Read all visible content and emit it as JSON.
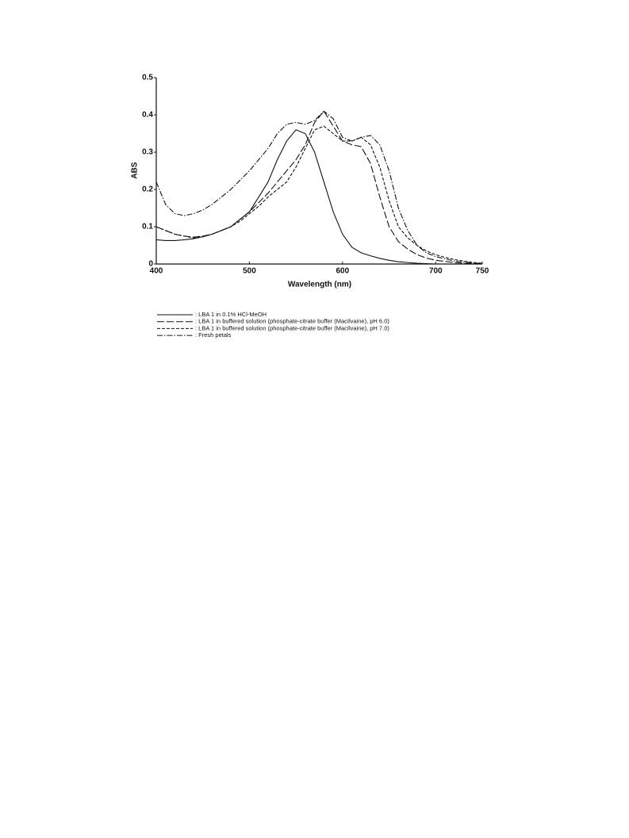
{
  "chart_data": {
    "type": "line",
    "xlabel": "Wavelength (nm)",
    "ylabel": "ABS",
    "xlim": [
      400,
      750
    ],
    "xticks": [
      400,
      500,
      600,
      700,
      750
    ],
    "ylim": [
      0,
      0.5
    ],
    "yticks": [
      0,
      0.1,
      0.2,
      0.3,
      0.4,
      0.5
    ],
    "x": [
      400,
      410,
      420,
      430,
      440,
      450,
      460,
      470,
      480,
      490,
      500,
      510,
      520,
      530,
      540,
      550,
      560,
      570,
      580,
      590,
      600,
      610,
      620,
      630,
      640,
      650,
      660,
      670,
      680,
      690,
      700,
      710,
      720,
      730,
      740,
      750
    ],
    "series": [
      {
        "name": ": LBA 1 in 0.1% HCl-MeOH",
        "color": "#111111",
        "dash": "solid",
        "values": [
          0.065,
          0.063,
          0.063,
          0.065,
          0.068,
          0.073,
          0.08,
          0.09,
          0.1,
          0.12,
          0.14,
          0.18,
          0.22,
          0.28,
          0.33,
          0.36,
          0.35,
          0.3,
          0.22,
          0.14,
          0.08,
          0.045,
          0.03,
          0.022,
          0.015,
          0.01,
          0.006,
          0.004,
          0.002,
          0.001,
          0,
          0,
          0,
          0,
          0,
          0
        ]
      },
      {
        "name": ": LBA 1 in buffered solution (phosphate-citrate buffer (MacIlvaine), pH 6.0)",
        "color": "#111111",
        "dash": "long-dash",
        "values": [
          0.1,
          0.09,
          0.08,
          0.075,
          0.072,
          0.075,
          0.08,
          0.09,
          0.1,
          0.12,
          0.14,
          0.165,
          0.19,
          0.22,
          0.25,
          0.28,
          0.32,
          0.38,
          0.41,
          0.37,
          0.33,
          0.32,
          0.315,
          0.27,
          0.18,
          0.1,
          0.06,
          0.04,
          0.025,
          0.016,
          0.01,
          0.007,
          0.004,
          0.002,
          0.001,
          0
        ]
      },
      {
        "name": ": LBA 1 in buffered solution (phosphate-citrate buffer (MacIlvaine), pH 7.0)",
        "color": "#111111",
        "dash": "short-dash",
        "values": [
          0.1,
          0.09,
          0.08,
          0.075,
          0.07,
          0.074,
          0.08,
          0.09,
          0.1,
          0.115,
          0.135,
          0.155,
          0.18,
          0.2,
          0.22,
          0.26,
          0.31,
          0.36,
          0.37,
          0.35,
          0.33,
          0.33,
          0.34,
          0.32,
          0.26,
          0.17,
          0.1,
          0.07,
          0.05,
          0.035,
          0.025,
          0.018,
          0.012,
          0.008,
          0.004,
          0.002
        ]
      },
      {
        "name": ": Fresh petals",
        "color": "#111111",
        "dash": "dash-dot",
        "values": [
          0.22,
          0.16,
          0.135,
          0.13,
          0.135,
          0.145,
          0.16,
          0.18,
          0.2,
          0.225,
          0.25,
          0.28,
          0.31,
          0.35,
          0.375,
          0.38,
          0.375,
          0.385,
          0.41,
          0.39,
          0.34,
          0.33,
          0.34,
          0.345,
          0.32,
          0.25,
          0.15,
          0.09,
          0.05,
          0.03,
          0.02,
          0.014,
          0.008,
          0.005,
          0.003,
          0.001
        ]
      }
    ]
  }
}
